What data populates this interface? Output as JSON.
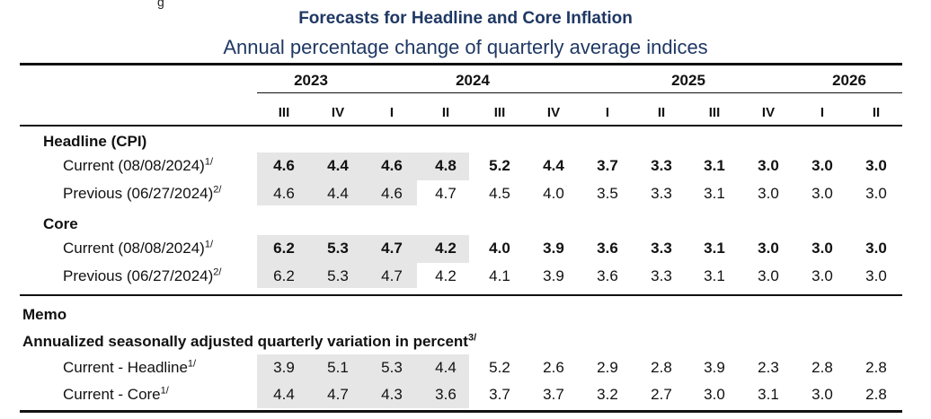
{
  "stray_mark": "g",
  "title": "Forecasts for Headline and Core Inflation",
  "subtitle": "Annual percentage change of quarterly average indices",
  "years": [
    "2023",
    "2024",
    "2025",
    "2026"
  ],
  "quarters": [
    "III",
    "IV",
    "I",
    "II",
    "III",
    "IV",
    "I",
    "II",
    "III",
    "IV",
    "I",
    "II"
  ],
  "sections": {
    "headline": "Headline (CPI)",
    "core": "Core",
    "memo": "Memo",
    "memo_sub": "Annualized seasonally adjusted quarterly variation in percent",
    "memo_sub_note": "3/"
  },
  "rows": {
    "headline_current": {
      "label": "Current (08/08/2024)",
      "note": "1/",
      "values": [
        "4.6",
        "4.4",
        "4.6",
        "4.8",
        "5.2",
        "4.4",
        "3.7",
        "3.3",
        "3.1",
        "3.0",
        "3.0",
        "3.0"
      ]
    },
    "headline_previous": {
      "label": "Previous (06/27/2024)",
      "note": "2/",
      "values": [
        "4.6",
        "4.4",
        "4.6",
        "4.7",
        "4.5",
        "4.0",
        "3.5",
        "3.3",
        "3.1",
        "3.0",
        "3.0",
        "3.0"
      ]
    },
    "core_current": {
      "label": "Current (08/08/2024)",
      "note": "1/",
      "values": [
        "6.2",
        "5.3",
        "4.7",
        "4.2",
        "4.0",
        "3.9",
        "3.6",
        "3.3",
        "3.1",
        "3.0",
        "3.0",
        "3.0"
      ]
    },
    "core_previous": {
      "label": "Previous (06/27/2024)",
      "note": "2/",
      "values": [
        "6.2",
        "5.3",
        "4.7",
        "4.2",
        "4.1",
        "3.9",
        "3.6",
        "3.3",
        "3.1",
        "3.0",
        "3.0",
        "3.0"
      ]
    },
    "memo_headline": {
      "label": "Current - Headline",
      "note": "1/",
      "values": [
        "3.9",
        "5.1",
        "5.3",
        "4.4",
        "5.2",
        "2.6",
        "2.9",
        "2.8",
        "3.9",
        "2.3",
        "2.8",
        "2.8"
      ]
    },
    "memo_core": {
      "label": "Current - Core",
      "note": "1/",
      "values": [
        "4.4",
        "4.7",
        "4.3",
        "3.6",
        "3.7",
        "3.7",
        "3.2",
        "2.7",
        "3.0",
        "3.1",
        "3.0",
        "2.8"
      ]
    }
  }
}
